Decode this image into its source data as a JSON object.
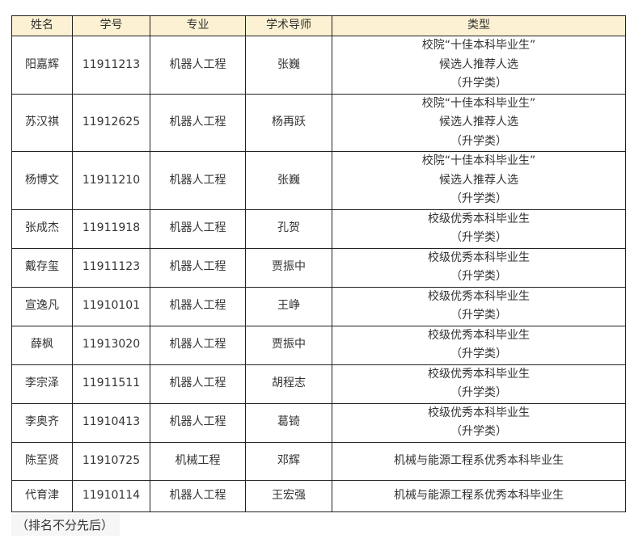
{
  "headers": [
    "姓名",
    "学号",
    "专业",
    "学术导师",
    "类型"
  ],
  "rows": [
    [
      "阳嘉辉",
      "11911213",
      "机器人工程",
      "张巍",
      [
        "校院“十佳本科毕业生”",
        "候选人推荐人选",
        "（升学类）"
      ]
    ],
    [
      "苏汉祺",
      "11912625",
      "机器人工程",
      "杨再跃",
      [
        "校院“十佳本科毕业生”",
        "候选人推荐人选",
        "（升学类）"
      ]
    ],
    [
      "杨博文",
      "11911210",
      "机器人工程",
      "张巍",
      [
        "校院“十佳本科毕业生”",
        "候选人推荐人选",
        "（升学类）"
      ]
    ],
    [
      "张成杰",
      "11911918",
      "机器人工程",
      "孔贺",
      [
        "校级优秀本科毕业生",
        "（升学类）"
      ]
    ],
    [
      "戴存玺",
      "11911123",
      "机器人工程",
      "贾振中",
      [
        "校级优秀本科毕业生",
        "（升学类）"
      ]
    ],
    [
      "宣逸凡",
      "11910101",
      "机器人工程",
      "王峥",
      [
        "校级优秀本科毕业生",
        "（升学类）"
      ]
    ],
    [
      "薛枫",
      "11913020",
      "机器人工程",
      "贾振中",
      [
        "校级优秀本科毕业生",
        "（升学类）"
      ]
    ],
    [
      "李宗泽",
      "11911511",
      "机器人工程",
      "胡程志",
      [
        "校级优秀本科毕业生",
        "（升学类）"
      ]
    ],
    [
      "李奥齐",
      "11910413",
      "机器人工程",
      "葛锜",
      [
        "校级优秀本科毕业生",
        "（升学类）"
      ]
    ],
    [
      "陈至贤",
      "11910725",
      "机械工程",
      "邓辉",
      [
        "机械与能源工程系优秀本科毕业生"
      ]
    ],
    [
      "代育津",
      "11910114",
      "机器人工程",
      "王宏强",
      [
        "机械与能源工程系优秀本科毕业生"
      ]
    ]
  ],
  "note": "（排名不分先后）"
}
